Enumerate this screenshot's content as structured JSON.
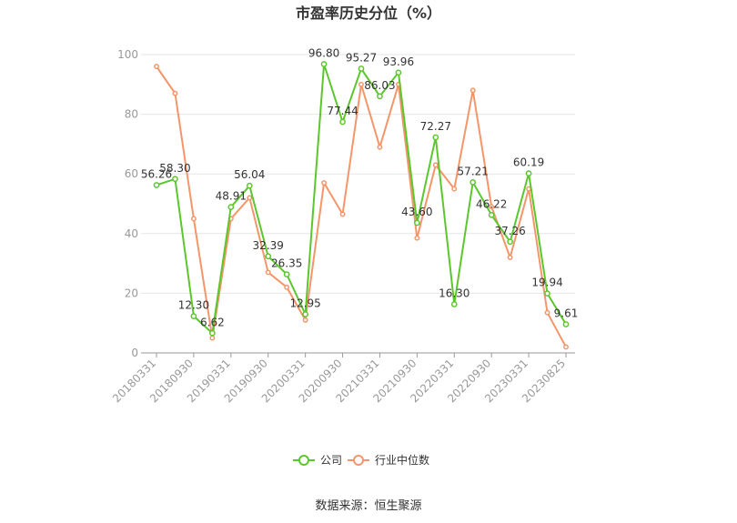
{
  "chart_data": {
    "type": "line",
    "title": "市盈率历史分位（%）",
    "source": "数据来源：恒生聚源",
    "ylim": [
      0,
      100
    ],
    "yticks": [
      "0",
      "20",
      "40",
      "60",
      "80",
      "100"
    ],
    "xtick_labels": [
      "20180331",
      "20180930",
      "20190331",
      "20190930",
      "20200331",
      "20200930",
      "20210331",
      "20210930",
      "20220331",
      "20220930",
      "20230331",
      "20230825"
    ],
    "x": [
      "20180331",
      "20180630",
      "20180930",
      "20181231",
      "20190331",
      "20190630",
      "20190930",
      "20191231",
      "20200331",
      "20200630",
      "20200930",
      "20201231",
      "20210331",
      "20210630",
      "20210930",
      "20211231",
      "20220331",
      "20220630",
      "20220930",
      "20221231",
      "20230331",
      "20230630",
      "20230825"
    ],
    "grid": true,
    "legend_position": "bottom",
    "series": [
      {
        "name": "公司",
        "color": "#5bc72c",
        "values": [
          56.26,
          58.3,
          12.3,
          6.62,
          48.91,
          56.04,
          32.39,
          26.35,
          12.95,
          96.8,
          77.44,
          95.27,
          86.03,
          93.96,
          43.6,
          72.27,
          16.3,
          57.21,
          46.22,
          37.26,
          60.19,
          19.94,
          9.61
        ],
        "labels": [
          "56.26",
          "58.30",
          "12.30",
          "6.62",
          "48.91",
          "56.04",
          "32.39",
          "26.35",
          "12.95",
          "96.80",
          "77.44",
          "95.27",
          "86.03",
          "93.96",
          "43.60",
          "72.27",
          "16.30",
          "57.21",
          "46.22",
          "37.26",
          "60.19",
          "19.94",
          "9.61"
        ]
      },
      {
        "name": "行业中位数",
        "color": "#f4956a",
        "values": [
          96,
          87,
          45,
          5,
          45,
          52,
          27,
          22,
          11,
          57,
          46.5,
          90,
          69,
          90,
          38.5,
          63,
          55,
          88,
          49,
          32,
          55,
          13.5,
          2
        ]
      }
    ]
  }
}
